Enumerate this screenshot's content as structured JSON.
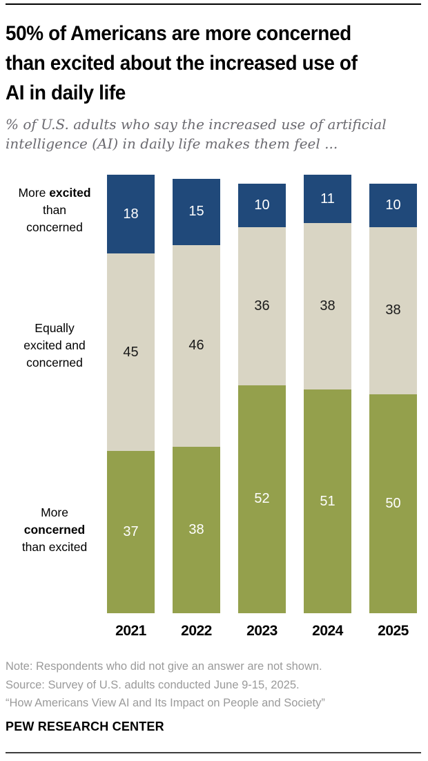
{
  "header": {
    "title_lines": [
      "50% of Americans are more concerned",
      "than excited about the increased use of",
      "AI in daily life"
    ],
    "subtitle_lines": [
      "% of U.S. adults who say the increased use of artificial",
      "intelligence (AI) in daily life makes them feel ..."
    ]
  },
  "chart_data": {
    "type": "bar",
    "stacked": true,
    "title": "50% of Americans are more concerned than excited about the increased use of AI in daily life",
    "subtitle": "% of U.S. adults who say the increased use of artificial intelligence (AI) in daily life makes them feel ...",
    "categories": [
      "2021",
      "2022",
      "2023",
      "2024",
      "2025"
    ],
    "series": [
      {
        "name": "More excited than concerned",
        "color": "#20497a",
        "label_color": "#ffffff",
        "values": [
          18,
          15,
          10,
          11,
          10
        ]
      },
      {
        "name": "Equally excited and concerned",
        "color": "#d9d5c4",
        "label_color": "#1a1a1a",
        "values": [
          45,
          46,
          36,
          38,
          38
        ]
      },
      {
        "name": "More concerned than excited",
        "color": "#94a04c",
        "label_color": "#ffffff",
        "values": [
          37,
          38,
          52,
          51,
          50
        ]
      }
    ],
    "ylim": [
      0,
      100
    ],
    "grid": false,
    "legend_position": "left-category-labels",
    "value_labels_shown": true
  },
  "side_labels": [
    {
      "lines": [
        [
          {
            "t": "More ",
            "b": false
          },
          {
            "t": "excited",
            "b": true
          }
        ],
        [
          {
            "t": "than",
            "b": false
          }
        ],
        [
          {
            "t": "concerned",
            "b": false
          }
        ]
      ]
    },
    {
      "lines": [
        [
          {
            "t": "Equally",
            "b": false
          }
        ],
        [
          {
            "t": "excited and",
            "b": false
          }
        ],
        [
          {
            "t": "concerned",
            "b": false
          }
        ]
      ]
    },
    {
      "lines": [
        [
          {
            "t": "More",
            "b": false
          }
        ],
        [
          {
            "t": "concerned",
            "b": true
          }
        ],
        [
          {
            "t": "than excited",
            "b": false
          }
        ]
      ]
    }
  ],
  "footer": {
    "note_lines": [
      "Note: Respondents who did not give an answer are not shown.",
      "Source: Survey of U.S. adults conducted June 9-15, 2025.",
      "“How Americans View AI and Its Impact on People and Society”"
    ],
    "brand": "PEW RESEARCH CENTER"
  }
}
